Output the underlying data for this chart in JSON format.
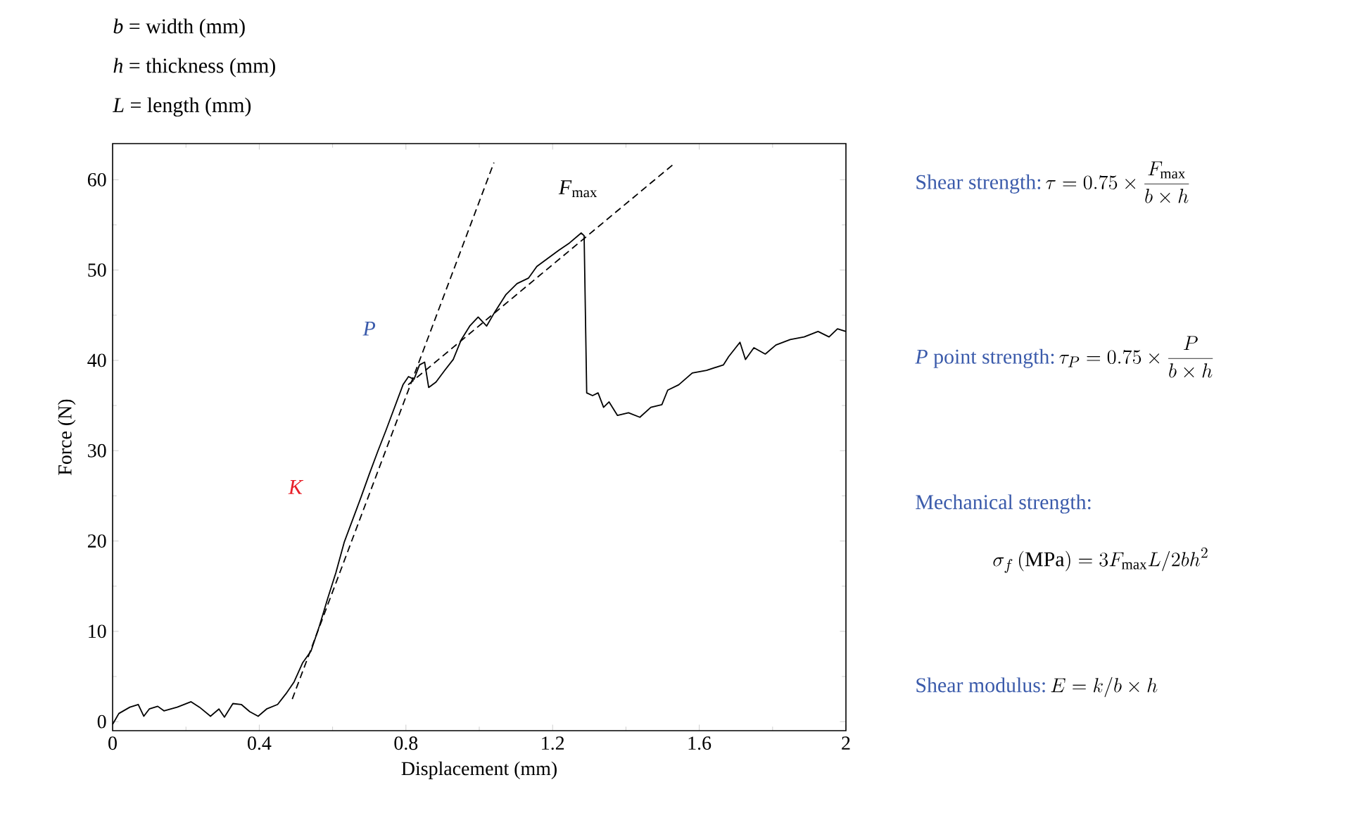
{
  "chart_data": {
    "type": "line",
    "xlabel": "Displacement (mm)",
    "ylabel": "Force (N)",
    "xlim": [
      0,
      2
    ],
    "ylim": [
      -1,
      64
    ],
    "xticks": [
      0,
      0.4,
      0.8,
      1.2,
      1.6,
      2
    ],
    "yticks": [
      0,
      10,
      20,
      30,
      40,
      50,
      60
    ],
    "marker": "none",
    "series": [
      {
        "color": "#000000",
        "line_style": "solid",
        "x": [
          0,
          0.017,
          0.047,
          0.07,
          0.085,
          0.1,
          0.123,
          0.14,
          0.176,
          0.214,
          0.237,
          0.267,
          0.29,
          0.305,
          0.328,
          0.351,
          0.374,
          0.397,
          0.42,
          0.45,
          0.473,
          0.495,
          0.518,
          0.541,
          0.564,
          0.587,
          0.609,
          0.632,
          0.655,
          0.678,
          0.7,
          0.723,
          0.746,
          0.769,
          0.792,
          0.807,
          0.822,
          0.837,
          0.851,
          0.862,
          0.882,
          0.906,
          0.929,
          0.951,
          0.974,
          0.997,
          1.02,
          1.043,
          1.073,
          1.103,
          1.134,
          1.157,
          1.187,
          1.217,
          1.246,
          1.278,
          1.286,
          1.293,
          1.309,
          1.324,
          1.339,
          1.354,
          1.377,
          1.407,
          1.438,
          1.468,
          1.498,
          1.514,
          1.544,
          1.581,
          1.62,
          1.666,
          1.68,
          1.711,
          1.726,
          1.749,
          1.78,
          1.809,
          1.848,
          1.886,
          1.924,
          1.954,
          1.977,
          2.0
        ],
        "values": [
          -0.3,
          0.9,
          1.6,
          1.9,
          0.6,
          1.4,
          1.7,
          1.2,
          1.6,
          2.2,
          1.6,
          0.6,
          1.4,
          0.5,
          2.0,
          1.9,
          1.1,
          0.6,
          1.4,
          1.9,
          3.1,
          4.4,
          6.5,
          7.8,
          10.6,
          13.7,
          16.5,
          19.9,
          22.4,
          24.9,
          27.4,
          29.9,
          32.3,
          34.8,
          37.3,
          38.2,
          37.9,
          39.5,
          39.8,
          37.0,
          37.6,
          38.9,
          40.1,
          42.3,
          43.8,
          44.8,
          43.8,
          45.4,
          47.3,
          48.5,
          49.1,
          50.4,
          51.3,
          52.2,
          53.0,
          54.1,
          53.8,
          36.4,
          36.1,
          36.4,
          34.8,
          35.4,
          33.9,
          34.2,
          33.7,
          34.8,
          35.1,
          36.7,
          37.3,
          38.6,
          38.9,
          39.5,
          40.4,
          42.0,
          40.1,
          41.4,
          40.7,
          41.7,
          42.3,
          42.6,
          43.2,
          42.6,
          43.5,
          43.2
        ]
      },
      {
        "color": "#000000",
        "line_style": "dashed",
        "x": [
          0.49,
          1.04
        ],
        "values": [
          2.5,
          61.9
        ]
      },
      {
        "color": "#000000",
        "line_style": "dashed",
        "x": [
          0.806,
          1.535
        ],
        "values": [
          37.3,
          61.9
        ]
      }
    ],
    "annotations": [
      "*b* = width (mm)",
      "*h* = thickness (mm)",
      "*L* = length (mm)",
      "*K*",
      "*P*",
      "*F*$_{max}$",
      "Shear strength:",
      "\\tau = 0.75\\times\\frac{F_{\\mathrm{max}}}{b\\times h}",
      "*P* point strength:",
      "\\tau_P = 0.75\\times\\frac{P}{b\\times h}",
      "Mechanical strength:",
      "\\sigma_f\\,(\\mathrm{MPa}) = 3F_{\\mathrm{max}}L/2bh^2",
      "Shear modulus:",
      "E = k/b\\times h"
    ]
  }
}
